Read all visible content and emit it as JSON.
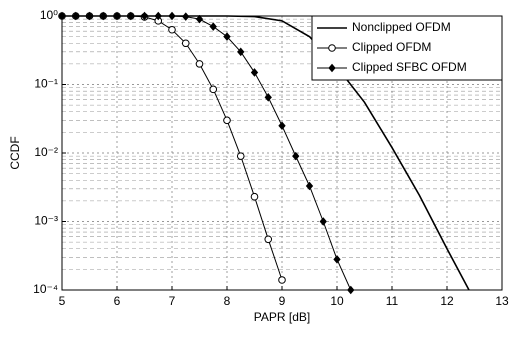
{
  "chart_data": {
    "type": "line",
    "xlabel": "PAPR [dB]",
    "ylabel": "CCDF",
    "xlim": [
      5,
      13
    ],
    "xticks": [
      5,
      6,
      7,
      8,
      9,
      10,
      11,
      12,
      13
    ],
    "ylim": [
      0.0001,
      1
    ],
    "yscale": "log",
    "yticks": [
      {
        "value": 1,
        "label": "10⁰"
      },
      {
        "value": 0.1,
        "label": "10⁻¹"
      },
      {
        "value": 0.01,
        "label": "10⁻²"
      },
      {
        "value": 0.001,
        "label": "10⁻³"
      },
      {
        "value": 0.0001,
        "label": "10⁻⁴"
      }
    ],
    "grid": true,
    "minor_grid": true,
    "legend": "upper right",
    "series": [
      {
        "name": "Nonclipped OFDM",
        "color": "#000000",
        "marker": "none",
        "x": [
          5,
          8,
          8.5,
          9,
          9.5,
          10,
          10.5,
          11,
          11.5,
          12,
          12.4
        ],
        "values": [
          1,
          1,
          0.98,
          0.85,
          0.5,
          0.18,
          0.055,
          0.012,
          0.0024,
          0.0004,
          0.0001
        ]
      },
      {
        "name": "Clipped OFDM",
        "color": "#000000",
        "marker": "circle",
        "x": [
          5,
          5.25,
          5.5,
          5.75,
          6,
          6.25,
          6.5,
          6.75,
          7,
          7.25,
          7.5,
          7.75,
          8,
          8.25,
          8.5,
          8.75,
          9
        ],
        "values": [
          1,
          1,
          1,
          1,
          1,
          1,
          0.97,
          0.85,
          0.63,
          0.4,
          0.2,
          0.085,
          0.03,
          0.009,
          0.0023,
          0.00055,
          0.00014
        ]
      },
      {
        "name": "Clipped SFBC OFDM",
        "color": "#000000",
        "marker": "diamond",
        "x": [
          5,
          5.25,
          5.5,
          5.75,
          6,
          6.25,
          6.5,
          6.75,
          7,
          7.25,
          7.5,
          7.75,
          8,
          8.25,
          8.5,
          8.75,
          9,
          9.25,
          9.5,
          9.75,
          10,
          10.25
        ],
        "values": [
          1,
          1,
          1,
          1,
          1,
          1,
          1,
          1,
          1,
          0.98,
          0.9,
          0.7,
          0.5,
          0.3,
          0.15,
          0.065,
          0.025,
          0.009,
          0.0033,
          0.001,
          0.00028,
          0.0001
        ]
      }
    ]
  }
}
